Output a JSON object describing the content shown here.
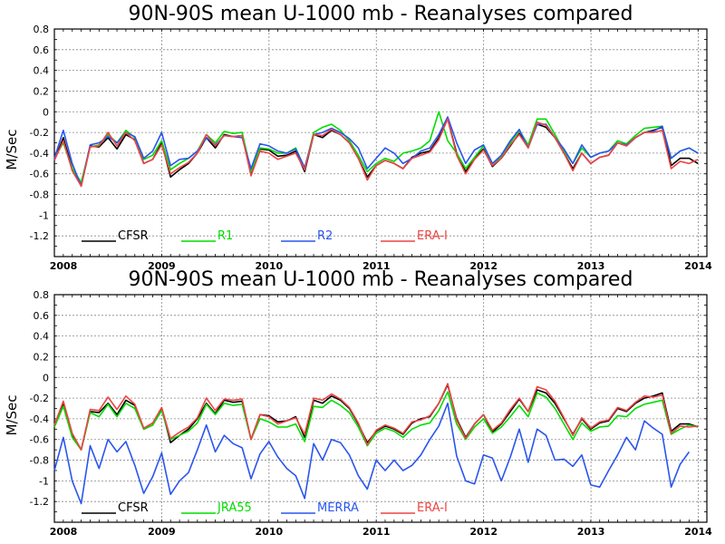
{
  "chart_data": [
    {
      "type": "line",
      "title": "90N-90S mean U-1000 mb - Reanalyses compared",
      "ylabel": "M/Sec",
      "xlabel": "",
      "ylim": [
        -1.4,
        0.8
      ],
      "xlim": [
        2008,
        2014.08
      ],
      "yticks": [
        "0.8",
        "0.6",
        "0.4",
        "0.2",
        "0",
        "-0.2",
        "-0.4",
        "-0.6",
        "-0.8",
        "-1",
        "-1.2"
      ],
      "ytick_values": [
        0.8,
        0.6,
        0.4,
        0.2,
        0,
        -0.2,
        -0.4,
        -0.6,
        -0.8,
        -1,
        -1.2
      ],
      "xticks": [
        "2008",
        "2009",
        "2010",
        "2011",
        "2012",
        "2013",
        "2014"
      ],
      "xtick_values": [
        2008,
        2009,
        2010,
        2011,
        2012,
        2013,
        2014
      ],
      "grid": true,
      "legend_position": "bottom",
      "x_start": 2008,
      "x_step": 0.0833,
      "series": [
        {
          "name": "CFSR",
          "color": "#000000",
          "values": [
            -0.47,
            -0.25,
            -0.55,
            -0.7,
            -0.33,
            -0.34,
            -0.25,
            -0.36,
            -0.22,
            -0.27,
            -0.5,
            -0.46,
            -0.3,
            -0.63,
            -0.56,
            -0.5,
            -0.4,
            -0.25,
            -0.35,
            -0.22,
            -0.24,
            -0.23,
            -0.6,
            -0.36,
            -0.37,
            -0.43,
            -0.42,
            -0.38,
            -0.58,
            -0.22,
            -0.25,
            -0.18,
            -0.22,
            -0.3,
            -0.45,
            -0.63,
            -0.52,
            -0.47,
            -0.5,
            -0.55,
            -0.44,
            -0.4,
            -0.38,
            -0.25,
            -0.07,
            -0.4,
            -0.58,
            -0.45,
            -0.36,
            -0.53,
            -0.45,
            -0.33,
            -0.21,
            -0.33,
            -0.12,
            -0.15,
            -0.25,
            -0.4,
            -0.55,
            -0.4,
            -0.5,
            -0.44,
            -0.42,
            -0.3,
            -0.33,
            -0.25,
            -0.2,
            -0.18,
            -0.15,
            -0.52,
            -0.45,
            -0.45,
            -0.5
          ]
        },
        {
          "name": "R1",
          "color": "#00dd00",
          "values": [
            -0.45,
            -0.3,
            -0.55,
            -0.68,
            -0.34,
            -0.32,
            -0.22,
            -0.3,
            -0.18,
            -0.25,
            -0.46,
            -0.42,
            -0.28,
            -0.56,
            -0.5,
            -0.45,
            -0.38,
            -0.22,
            -0.3,
            -0.19,
            -0.21,
            -0.2,
            -0.58,
            -0.35,
            -0.36,
            -0.4,
            -0.4,
            -0.35,
            -0.55,
            -0.2,
            -0.15,
            -0.12,
            -0.18,
            -0.28,
            -0.42,
            -0.58,
            -0.5,
            -0.45,
            -0.48,
            -0.4,
            -0.38,
            -0.35,
            -0.28,
            0.0,
            -0.28,
            -0.4,
            -0.55,
            -0.44,
            -0.33,
            -0.5,
            -0.44,
            -0.3,
            -0.18,
            -0.32,
            -0.07,
            -0.07,
            -0.22,
            -0.38,
            -0.5,
            -0.35,
            -0.44,
            -0.4,
            -0.38,
            -0.28,
            -0.31,
            -0.23,
            -0.16,
            -0.15,
            -0.14,
            -0.45,
            -0.38,
            -0.35,
            -0.4
          ]
        },
        {
          "name": "R2",
          "color": "#2a55ee",
          "values": [
            -0.45,
            -0.18,
            -0.5,
            -0.72,
            -0.32,
            -0.3,
            -0.24,
            -0.3,
            -0.2,
            -0.24,
            -0.45,
            -0.38,
            -0.2,
            -0.52,
            -0.46,
            -0.45,
            -0.38,
            -0.25,
            -0.32,
            -0.23,
            -0.24,
            -0.25,
            -0.55,
            -0.31,
            -0.33,
            -0.38,
            -0.4,
            -0.36,
            -0.54,
            -0.22,
            -0.2,
            -0.16,
            -0.2,
            -0.26,
            -0.35,
            -0.55,
            -0.45,
            -0.35,
            -0.4,
            -0.5,
            -0.45,
            -0.38,
            -0.35,
            -0.22,
            -0.05,
            -0.3,
            -0.5,
            -0.37,
            -0.32,
            -0.5,
            -0.42,
            -0.28,
            -0.17,
            -0.35,
            -0.12,
            -0.12,
            -0.25,
            -0.36,
            -0.5,
            -0.32,
            -0.44,
            -0.4,
            -0.38,
            -0.3,
            -0.32,
            -0.25,
            -0.2,
            -0.19,
            -0.14,
            -0.45,
            -0.38,
            -0.35,
            -0.4
          ]
        },
        {
          "name": "ERA-I",
          "color": "#ee4444",
          "values": [
            -0.47,
            -0.28,
            -0.57,
            -0.72,
            -0.34,
            -0.33,
            -0.2,
            -0.33,
            -0.2,
            -0.28,
            -0.5,
            -0.46,
            -0.32,
            -0.6,
            -0.54,
            -0.49,
            -0.4,
            -0.22,
            -0.33,
            -0.23,
            -0.24,
            -0.23,
            -0.62,
            -0.38,
            -0.4,
            -0.46,
            -0.43,
            -0.4,
            -0.56,
            -0.22,
            -0.23,
            -0.17,
            -0.22,
            -0.3,
            -0.45,
            -0.66,
            -0.52,
            -0.47,
            -0.5,
            -0.55,
            -0.45,
            -0.42,
            -0.39,
            -0.27,
            -0.07,
            -0.42,
            -0.6,
            -0.46,
            -0.37,
            -0.52,
            -0.45,
            -0.32,
            -0.22,
            -0.35,
            -0.1,
            -0.13,
            -0.25,
            -0.4,
            -0.57,
            -0.4,
            -0.5,
            -0.44,
            -0.42,
            -0.3,
            -0.33,
            -0.25,
            -0.2,
            -0.2,
            -0.18,
            -0.55,
            -0.48,
            -0.5,
            -0.46
          ]
        }
      ]
    },
    {
      "type": "line",
      "title": "90N-90S mean U-1000 mb - Reanalyses compared",
      "ylabel": "M/Sec",
      "xlabel": "",
      "ylim": [
        -1.4,
        0.8
      ],
      "xlim": [
        2008,
        2014.08
      ],
      "yticks": [
        "0.8",
        "0.6",
        "0.4",
        "0.2",
        "0",
        "-0.2",
        "-0.4",
        "-0.6",
        "-0.8",
        "-1",
        "-1.2"
      ],
      "ytick_values": [
        0.8,
        0.6,
        0.4,
        0.2,
        0,
        -0.2,
        -0.4,
        -0.6,
        -0.8,
        -1,
        -1.2
      ],
      "xticks": [
        "2008",
        "2009",
        "2010",
        "2011",
        "2012",
        "2013",
        "2014"
      ],
      "xtick_values": [
        2008,
        2009,
        2010,
        2011,
        2012,
        2013,
        2014
      ],
      "grid": true,
      "legend_position": "bottom",
      "x_start": 2008,
      "x_step": 0.0833,
      "series": [
        {
          "name": "CFSR",
          "color": "#000000",
          "values": [
            -0.47,
            -0.25,
            -0.55,
            -0.7,
            -0.33,
            -0.34,
            -0.25,
            -0.36,
            -0.22,
            -0.27,
            -0.5,
            -0.46,
            -0.3,
            -0.63,
            -0.56,
            -0.5,
            -0.4,
            -0.25,
            -0.35,
            -0.22,
            -0.24,
            -0.23,
            -0.6,
            -0.36,
            -0.37,
            -0.43,
            -0.42,
            -0.38,
            -0.58,
            -0.22,
            -0.25,
            -0.18,
            -0.22,
            -0.3,
            -0.45,
            -0.63,
            -0.52,
            -0.47,
            -0.5,
            -0.55,
            -0.44,
            -0.4,
            -0.38,
            -0.25,
            -0.07,
            -0.4,
            -0.58,
            -0.45,
            -0.36,
            -0.53,
            -0.45,
            -0.33,
            -0.21,
            -0.33,
            -0.12,
            -0.15,
            -0.25,
            -0.4,
            -0.55,
            -0.4,
            -0.5,
            -0.44,
            -0.42,
            -0.3,
            -0.33,
            -0.25,
            -0.2,
            -0.18,
            -0.15,
            -0.52,
            -0.45,
            -0.45,
            -0.48
          ]
        },
        {
          "name": "JRA55",
          "color": "#00dd00",
          "values": [
            -0.48,
            -0.28,
            -0.58,
            -0.7,
            -0.34,
            -0.38,
            -0.26,
            -0.38,
            -0.25,
            -0.3,
            -0.5,
            -0.46,
            -0.32,
            -0.6,
            -0.56,
            -0.52,
            -0.44,
            -0.26,
            -0.36,
            -0.25,
            -0.27,
            -0.26,
            -0.6,
            -0.4,
            -0.43,
            -0.48,
            -0.48,
            -0.45,
            -0.62,
            -0.28,
            -0.29,
            -0.22,
            -0.27,
            -0.34,
            -0.48,
            -0.66,
            -0.54,
            -0.49,
            -0.52,
            -0.58,
            -0.5,
            -0.46,
            -0.44,
            -0.32,
            -0.14,
            -0.45,
            -0.6,
            -0.48,
            -0.4,
            -0.54,
            -0.48,
            -0.38,
            -0.27,
            -0.38,
            -0.15,
            -0.19,
            -0.3,
            -0.45,
            -0.6,
            -0.44,
            -0.52,
            -0.48,
            -0.47,
            -0.37,
            -0.38,
            -0.3,
            -0.26,
            -0.24,
            -0.22,
            -0.55,
            -0.5,
            -0.46,
            -0.48
          ]
        },
        {
          "name": "MERRA",
          "color": "#2a55ee",
          "values": [
            -0.9,
            -0.58,
            -1.0,
            -1.22,
            -0.66,
            -0.88,
            -0.6,
            -0.72,
            -0.62,
            -0.85,
            -1.12,
            -0.96,
            -0.73,
            -1.13,
            -1.0,
            -0.92,
            -0.7,
            -0.46,
            -0.72,
            -0.56,
            -0.64,
            -0.68,
            -0.98,
            -0.74,
            -0.62,
            -0.77,
            -0.88,
            -0.95,
            -1.17,
            -0.64,
            -0.8,
            -0.6,
            -0.63,
            -0.75,
            -0.95,
            -1.08,
            -0.8,
            -0.9,
            -0.8,
            -0.9,
            -0.85,
            -0.75,
            -0.6,
            -0.47,
            -0.25,
            -0.76,
            -1.0,
            -1.03,
            -0.75,
            -0.78,
            -1.0,
            -0.77,
            -0.5,
            -0.82,
            -0.5,
            -0.56,
            -0.8,
            -0.79,
            -0.86,
            -0.75,
            -1.04,
            -1.06,
            -0.9,
            -0.75,
            -0.58,
            -0.7,
            -0.42,
            -0.49,
            -0.55,
            -1.06,
            -0.84,
            -0.72
          ]
        },
        {
          "name": "ERA-I",
          "color": "#ee4444",
          "values": [
            -0.46,
            -0.23,
            -0.54,
            -0.7,
            -0.31,
            -0.32,
            -0.19,
            -0.31,
            -0.18,
            -0.26,
            -0.49,
            -0.44,
            -0.29,
            -0.59,
            -0.53,
            -0.48,
            -0.39,
            -0.2,
            -0.32,
            -0.21,
            -0.22,
            -0.21,
            -0.6,
            -0.36,
            -0.38,
            -0.45,
            -0.42,
            -0.39,
            -0.55,
            -0.2,
            -0.22,
            -0.16,
            -0.21,
            -0.29,
            -0.44,
            -0.65,
            -0.51,
            -0.46,
            -0.49,
            -0.54,
            -0.43,
            -0.41,
            -0.37,
            -0.25,
            -0.06,
            -0.41,
            -0.59,
            -0.45,
            -0.36,
            -0.51,
            -0.44,
            -0.31,
            -0.2,
            -0.33,
            -0.09,
            -0.12,
            -0.23,
            -0.39,
            -0.56,
            -0.39,
            -0.49,
            -0.43,
            -0.41,
            -0.29,
            -0.32,
            -0.24,
            -0.18,
            -0.19,
            -0.17,
            -0.54,
            -0.47,
            -0.48,
            -0.47
          ]
        }
      ]
    }
  ]
}
